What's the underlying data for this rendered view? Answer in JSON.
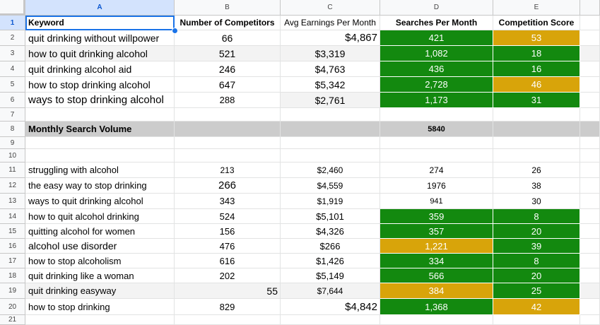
{
  "columns": [
    "A",
    "B",
    "C",
    "D",
    "E"
  ],
  "headers": {
    "keyword": "Keyword",
    "competitors": "Number of Competitors",
    "earnings": "Avg Earnings Per Month",
    "searches": "Searches Per Month",
    "score": "Competition Score"
  },
  "rows": [
    {
      "n": "1"
    },
    {
      "n": "2",
      "keyword": "quit drinking without willpower",
      "competitors": "66",
      "earnings": "$4,867",
      "searches": "421",
      "score": "53"
    },
    {
      "n": "3",
      "keyword": "how to quit drinking alcohol",
      "competitors": "521",
      "earnings": "$3,319",
      "searches": "1,082",
      "score": "18"
    },
    {
      "n": "4",
      "keyword": "quit drinking alcohol aid",
      "competitors": "246",
      "earnings": "$4,763",
      "searches": "436",
      "score": "16"
    },
    {
      "n": "5",
      "keyword": "how to stop drinking alcohol",
      "competitors": "647",
      "earnings": "$5,342",
      "searches": "2,728",
      "score": "46"
    },
    {
      "n": "6",
      "keyword": "ways to stop drinking alcohol",
      "competitors": "288",
      "earnings": "$2,761",
      "searches": "1,173",
      "score": "31"
    },
    {
      "n": "7"
    },
    {
      "n": "8",
      "keyword": "Monthly Search Volume",
      "searches": "5840"
    },
    {
      "n": "9"
    },
    {
      "n": "10"
    },
    {
      "n": "11",
      "keyword": "struggling with alcohol",
      "competitors": "213",
      "earnings": "$2,460",
      "searches": "274",
      "score": "26"
    },
    {
      "n": "12",
      "keyword": "the easy way to stop drinking",
      "competitors": "266",
      "earnings": "$4,559",
      "searches": "1976",
      "score": "38"
    },
    {
      "n": "13",
      "keyword": "ways to quit drinking alcohol",
      "competitors": "343",
      "earnings": "$1,919",
      "searches": "941",
      "score": "30"
    },
    {
      "n": "14",
      "keyword": "how to quit alcohol drinking",
      "competitors": "524",
      "earnings": "$5,101",
      "searches": "359",
      "score": "8"
    },
    {
      "n": "15",
      "keyword": "quitting alcohol for women",
      "competitors": "156",
      "earnings": "$4,326",
      "searches": "357",
      "score": "20"
    },
    {
      "n": "16",
      "keyword": "alcohol use disorder",
      "competitors": "476",
      "earnings": "$266",
      "searches": "1,221",
      "score": "39"
    },
    {
      "n": "17",
      "keyword": "how to stop alcoholism",
      "competitors": "616",
      "earnings": "$1,426",
      "searches": "334",
      "score": "8"
    },
    {
      "n": "18",
      "keyword": "quit drinking like a woman",
      "competitors": "202",
      "earnings": "$5,149",
      "searches": "566",
      "score": "20"
    },
    {
      "n": "19",
      "keyword": "quit drinking easyway",
      "competitors": "55",
      "earnings": "$7,644",
      "searches": "384",
      "score": "25"
    },
    {
      "n": "20",
      "keyword": "how to stop drinking",
      "competitors": "829",
      "earnings": "$4,842",
      "searches": "1,368",
      "score": "42"
    },
    {
      "n": "21"
    }
  ],
  "colors": {
    "green": "#13890f",
    "amber": "#d8a40a",
    "gray": "#cccccc",
    "selection": "#1a73e8"
  }
}
